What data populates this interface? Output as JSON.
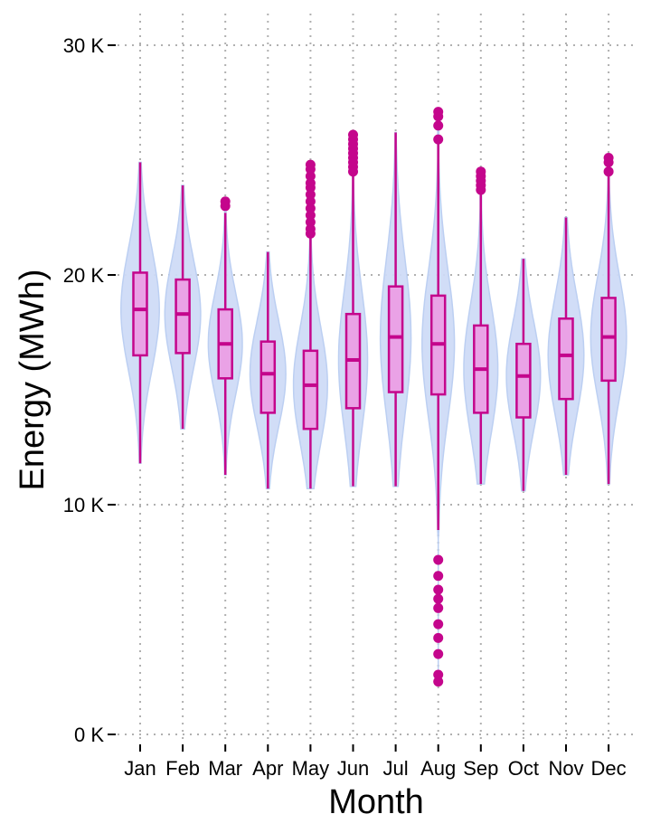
{
  "chart_data": {
    "type": "violin",
    "xlabel": "Month",
    "ylabel": "Energy (MWh)",
    "categories": [
      "Jan",
      "Feb",
      "Mar",
      "Apr",
      "May",
      "Jun",
      "Jul",
      "Aug",
      "Sep",
      "Oct",
      "Nov",
      "Dec"
    ],
    "ylim": [
      0,
      30000
    ],
    "yticks": [
      0,
      10000,
      20000,
      30000
    ],
    "ytick_labels": [
      "0 K",
      "10 K",
      "20 K",
      "30 K"
    ],
    "grid": true,
    "colors": {
      "violin_fill": "#cfdcf7",
      "violin_stroke": "#b9cdf2",
      "box_fill": "#eaa2e6",
      "box_stroke": "#c4068c",
      "grid": "#b0b0b0"
    },
    "series": [
      {
        "month": "Jan",
        "min": 11800,
        "q1": 16500,
        "median": 18500,
        "q3": 20100,
        "max": 24900,
        "violin_width": 0.45,
        "outliers": []
      },
      {
        "month": "Feb",
        "min": 13300,
        "q1": 16600,
        "median": 18300,
        "q3": 19800,
        "max": 23900,
        "violin_width": 0.42,
        "outliers": []
      },
      {
        "month": "Mar",
        "min": 11300,
        "q1": 15500,
        "median": 17000,
        "q3": 18500,
        "max": 22700,
        "violin_width": 0.4,
        "outliers": [
          23000,
          23200
        ]
      },
      {
        "month": "Apr",
        "min": 10700,
        "q1": 14000,
        "median": 15700,
        "q3": 17100,
        "max": 21000,
        "violin_width": 0.42,
        "outliers": []
      },
      {
        "month": "May",
        "min": 10700,
        "q1": 13300,
        "median": 15200,
        "q3": 16700,
        "max": 21600,
        "violin_width": 0.4,
        "outliers": [
          21800,
          22000,
          22300,
          22600,
          22900,
          23200,
          23500,
          23800,
          24000,
          24300,
          24600,
          24800
        ]
      },
      {
        "month": "Jun",
        "min": 10800,
        "q1": 14200,
        "median": 16300,
        "q3": 18300,
        "max": 24300,
        "violin_width": 0.34,
        "outliers": [
          24500,
          24700,
          24900,
          25100,
          25300,
          25500,
          25700,
          25900,
          26100
        ]
      },
      {
        "month": "Jul",
        "min": 10800,
        "q1": 14900,
        "median": 17300,
        "q3": 19500,
        "max": 26200,
        "violin_width": 0.36,
        "outliers": []
      },
      {
        "month": "Aug",
        "min": 8900,
        "q1": 14800,
        "median": 17000,
        "q3": 19100,
        "max": 25800,
        "violin_width": 0.38,
        "outliers": [
          2300,
          2600,
          3500,
          4200,
          4800,
          5500,
          5900,
          6300,
          6900,
          7600,
          25900,
          26500,
          26900,
          27100
        ]
      },
      {
        "month": "Sep",
        "min": 10900,
        "q1": 14000,
        "median": 15900,
        "q3": 17800,
        "max": 23600,
        "violin_width": 0.4,
        "outliers": [
          23700,
          23900,
          24100,
          24300,
          24500
        ]
      },
      {
        "month": "Oct",
        "min": 10600,
        "q1": 13800,
        "median": 15600,
        "q3": 17000,
        "max": 20700,
        "violin_width": 0.4,
        "outliers": []
      },
      {
        "month": "Nov",
        "min": 11300,
        "q1": 14600,
        "median": 16500,
        "q3": 18100,
        "max": 22500,
        "violin_width": 0.42,
        "outliers": []
      },
      {
        "month": "Dec",
        "min": 10900,
        "q1": 15400,
        "median": 17300,
        "q3": 19000,
        "max": 24300,
        "violin_width": 0.42,
        "outliers": [
          24500,
          24900,
          25100
        ]
      }
    ]
  }
}
